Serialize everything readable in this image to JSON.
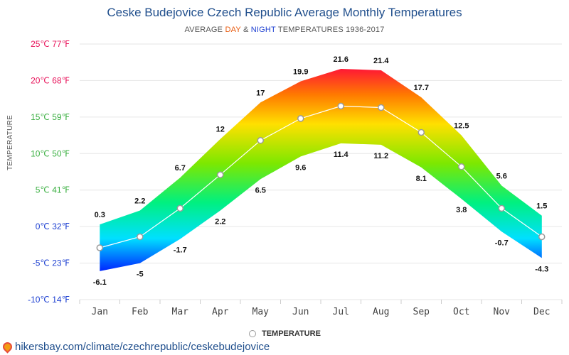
{
  "header": {
    "title": "Ceske Budejovice Czech Republic Average Monthly Temperatures",
    "subtitle_pre": "AVERAGE ",
    "subtitle_day": "DAY",
    "subtitle_amp": " & ",
    "subtitle_night": "NIGHT",
    "subtitle_post": " TEMPERATURES 1936-2017"
  },
  "legend": {
    "label": "TEMPERATURE"
  },
  "source": {
    "text": "hikersbay.com/climate/czechrepublic/ceskebudejovice"
  },
  "chart_data": {
    "type": "area",
    "title": "Ceske Budejovice Czech Republic Average Monthly Temperatures",
    "ylabel": "TEMPERATURE",
    "categories": [
      "Jan",
      "Feb",
      "Mar",
      "Apr",
      "May",
      "Jun",
      "Jul",
      "Aug",
      "Sep",
      "Oct",
      "Nov",
      "Dec"
    ],
    "ylim": [
      -10,
      25
    ],
    "yticks": [
      {
        "value": 25,
        "label": "25℃ 77℉",
        "color": "#e8175d"
      },
      {
        "value": 20,
        "label": "20℃ 68℉",
        "color": "#e8175d"
      },
      {
        "value": 15,
        "label": "15℃ 59℉",
        "color": "#3cb043"
      },
      {
        "value": 10,
        "label": "10℃ 50℉",
        "color": "#3cb043"
      },
      {
        "value": 5,
        "label": "5℃ 41℉",
        "color": "#3cb043"
      },
      {
        "value": 0,
        "label": "0℃ 32℉",
        "color": "#1c3fd1"
      },
      {
        "value": -5,
        "label": "-5℃ 23℉",
        "color": "#1c3fd1"
      },
      {
        "value": -10,
        "label": "-10℃ 14℉",
        "color": "#1c3fd1"
      }
    ],
    "series": [
      {
        "name": "DAY",
        "values": [
          0.3,
          2.2,
          6.7,
          12,
          17,
          19.9,
          21.6,
          21.4,
          17.7,
          12.5,
          5.6,
          1.5
        ]
      },
      {
        "name": "NIGHT",
        "values": [
          -6.1,
          -5,
          -1.7,
          2.2,
          6.5,
          9.6,
          11.4,
          11.2,
          8.1,
          3.8,
          -0.7,
          -4.3
        ]
      },
      {
        "name": "TEMPERATURE",
        "values": [
          -2.9,
          -1.4,
          2.5,
          7.1,
          11.8,
          14.8,
          16.5,
          16.3,
          12.9,
          8.2,
          2.5,
          -1.4
        ]
      }
    ],
    "day_labels": [
      "0.3",
      "2.2",
      "6.7",
      "12",
      "17",
      "19.9",
      "21.6",
      "21.4",
      "17.7",
      "12.5",
      "5.6",
      "1.5"
    ],
    "night_labels": [
      "-6.1",
      "-5",
      "-1.7",
      "2.2",
      "6.5",
      "9.6",
      "11.4",
      "11.2",
      "8.1",
      "3.8",
      "-0.7",
      "-4.3"
    ],
    "grid": true,
    "legend_position": "bottom"
  }
}
